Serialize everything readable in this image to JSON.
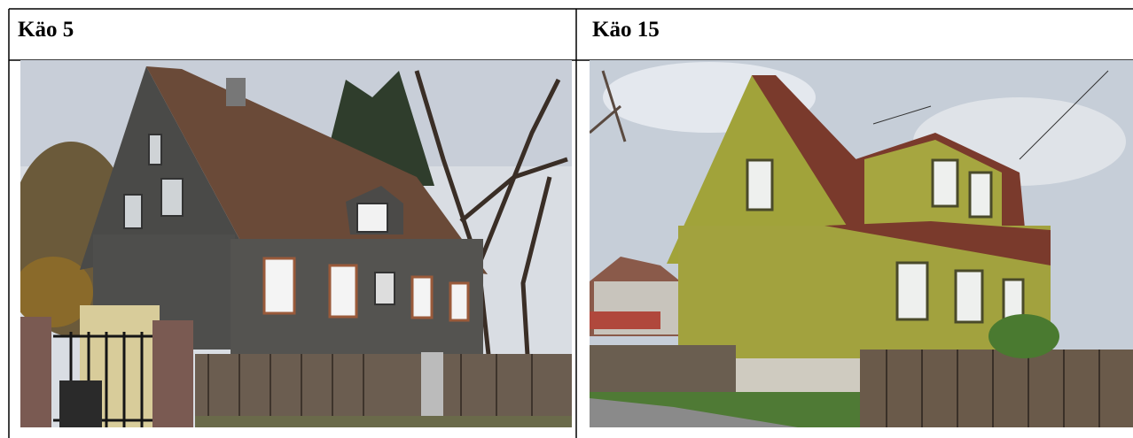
{
  "cells": [
    {
      "title": "Käo 5"
    },
    {
      "title": "Käo 15"
    }
  ]
}
